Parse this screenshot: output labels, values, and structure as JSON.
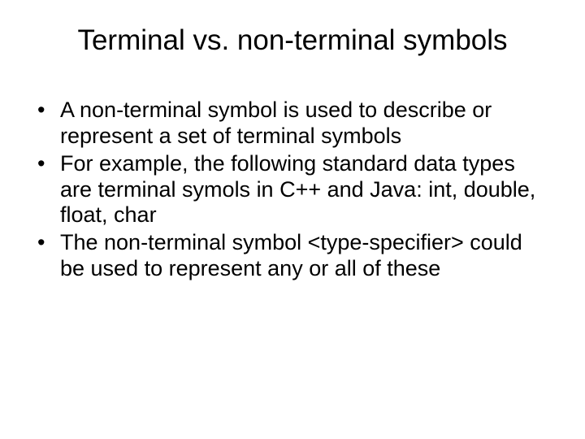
{
  "background_color": "#ffffff",
  "text_color": "#000000",
  "font_family": "Arial, Helvetica, sans-serif",
  "title": {
    "text": "Terminal vs. non-terminal symbols",
    "fontsize": 35,
    "align": "center"
  },
  "body": {
    "fontsize": 27,
    "bullets": [
      "A non-terminal symbol is used to describe or represent a set of terminal symbols",
      "For example, the following standard data types are terminal symols in C++ and Java: int, double, float, char",
      "The non-terminal symbol <type-specifier> could be used to represent any or all of these"
    ]
  }
}
